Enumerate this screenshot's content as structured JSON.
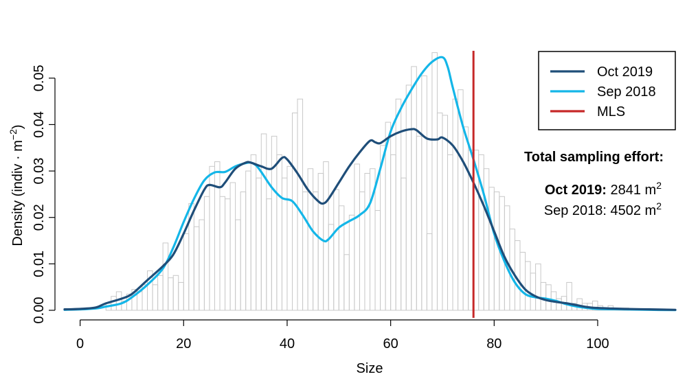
{
  "chart_data": {
    "type": "histogram",
    "xlabel": "Size",
    "ylabel": "Density (indiv · m",
    "ylabel_superscript": "−2",
    "ylabel_close": ")",
    "xlim": [
      -3,
      115
    ],
    "ylim": [
      0,
      0.055
    ],
    "x_ticks": [
      0,
      20,
      40,
      60,
      80,
      100
    ],
    "x_tick_labels": [
      "0",
      "20",
      "40",
      "60",
      "80",
      "100"
    ],
    "y_ticks": [
      0,
      0.01,
      0.02,
      0.03,
      0.04,
      0.05
    ],
    "y_tick_labels": [
      "0.00",
      "0.01",
      "0.02",
      "0.03",
      "0.04",
      "0.05"
    ],
    "grid": false,
    "histogram": {
      "bin_start": 5,
      "bin_width": 1,
      "color": "#c8c8c8",
      "values": [
        0.0015,
        0.003,
        0.004,
        0.002,
        0.0035,
        0.0045,
        0.004,
        0.0055,
        0.0085,
        0.0055,
        0.0075,
        0.0145,
        0.007,
        0.0075,
        0.006,
        0.0165,
        0.023,
        0.018,
        0.0195,
        0.0245,
        0.031,
        0.032,
        0.0245,
        0.024,
        0.0275,
        0.0195,
        0.0255,
        0.03,
        0.0335,
        0.0285,
        0.038,
        0.024,
        0.0375,
        0.0335,
        0.0285,
        0.031,
        0.0425,
        0.0455,
        0.0255,
        0.0305,
        0.0255,
        0.0295,
        0.032,
        0.0185,
        0.026,
        0.0225,
        0.012,
        0.0205,
        0.0315,
        0.0255,
        0.0295,
        0.0305,
        0.0215,
        0.0355,
        0.0405,
        0.0335,
        0.0455,
        0.0285,
        0.0485,
        0.0525,
        0.0375,
        0.0505,
        0.0165,
        0.0555,
        0.0425,
        0.042,
        0.0335,
        0.0455,
        0.0475,
        0.0395,
        0.0345,
        0.0345,
        0.0335,
        0.0305,
        0.0265,
        0.0255,
        0.0245,
        0.0225,
        0.0175,
        0.015,
        0.0125,
        0.0105,
        0.008,
        0.01,
        0.006,
        0.0055,
        0.004,
        0.0025,
        0.003,
        0.006,
        0.0015,
        0.0025,
        0.0015,
        0.0015,
        0.002,
        0.001,
        0.0005,
        0.001,
        0.0005,
        0.0005,
        0.0005
      ]
    },
    "series": [
      {
        "name": "Oct 2019",
        "color": "#1f4e79",
        "x": [
          -3,
          0,
          3,
          5,
          8,
          10,
          13,
          16,
          18,
          20,
          22,
          24,
          25,
          27,
          28,
          30,
          32,
          33,
          35,
          37,
          39,
          40,
          42,
          44,
          46,
          47,
          48,
          50,
          52,
          54,
          56,
          57,
          58,
          60,
          62,
          64,
          65,
          67,
          69,
          70,
          72,
          74,
          76,
          78,
          80,
          82,
          84,
          86,
          88,
          90,
          92,
          94,
          96,
          98,
          100,
          105,
          110,
          115
        ],
        "y": [
          0.0002,
          0.0003,
          0.0006,
          0.0015,
          0.0025,
          0.0035,
          0.0065,
          0.0095,
          0.012,
          0.0165,
          0.0215,
          0.026,
          0.027,
          0.0265,
          0.0275,
          0.0305,
          0.0318,
          0.0318,
          0.031,
          0.0305,
          0.0328,
          0.0325,
          0.0295,
          0.026,
          0.0235,
          0.023,
          0.024,
          0.0275,
          0.031,
          0.034,
          0.0365,
          0.0362,
          0.036,
          0.0375,
          0.0385,
          0.039,
          0.0388,
          0.037,
          0.0368,
          0.0372,
          0.0355,
          0.032,
          0.0275,
          0.0225,
          0.017,
          0.0115,
          0.0075,
          0.0045,
          0.003,
          0.0022,
          0.0018,
          0.0015,
          0.0011,
          0.0007,
          0.0005,
          0.0003,
          0.0002,
          0.0001
        ]
      },
      {
        "name": "Sep 2018",
        "color": "#14b6e8",
        "x": [
          -3,
          0,
          3,
          5,
          8,
          10,
          13,
          16,
          18,
          20,
          22,
          24,
          26,
          28,
          30,
          32,
          33,
          34,
          35,
          37,
          39,
          41,
          43,
          45,
          47,
          48,
          50,
          52,
          54,
          56,
          58,
          60,
          62,
          64,
          66,
          68,
          70,
          71,
          72,
          74,
          76,
          78,
          80,
          82,
          84,
          86,
          88,
          90,
          92,
          94,
          96,
          98,
          100,
          105,
          110,
          115
        ],
        "y": [
          0.0001,
          0.0002,
          0.0004,
          0.0008,
          0.0015,
          0.0028,
          0.0055,
          0.009,
          0.0135,
          0.019,
          0.024,
          0.028,
          0.0297,
          0.0298,
          0.031,
          0.0317,
          0.0318,
          0.0312,
          0.0298,
          0.0265,
          0.0242,
          0.0235,
          0.0205,
          0.017,
          0.015,
          0.0153,
          0.0178,
          0.0192,
          0.0205,
          0.023,
          0.0305,
          0.0385,
          0.0435,
          0.0475,
          0.051,
          0.0535,
          0.0545,
          0.0525,
          0.048,
          0.0395,
          0.0325,
          0.025,
          0.0165,
          0.0105,
          0.006,
          0.0035,
          0.0028,
          0.0025,
          0.002,
          0.0013,
          0.0008,
          0.0005,
          0.0003,
          0.0002,
          0.0001,
          5e-05
        ]
      }
    ],
    "reference_line": {
      "name": "MLS",
      "x": 76,
      "color": "#c62828"
    },
    "legend": {
      "position": "top-right",
      "entries": [
        {
          "label": "Oct 2019",
          "color": "#1f4e79"
        },
        {
          "label": "Sep 2018",
          "color": "#14b6e8"
        },
        {
          "label": "MLS",
          "color": "#c62828"
        }
      ]
    },
    "annotation": {
      "title": "Total sampling effort:",
      "lines": [
        {
          "label": "Oct 2019:",
          "bold": true,
          "value": " 2841 m",
          "superscript": "2"
        },
        {
          "label": "Sep 2018:",
          "bold": false,
          "value": " 4502 m",
          "superscript": "2"
        }
      ]
    }
  }
}
